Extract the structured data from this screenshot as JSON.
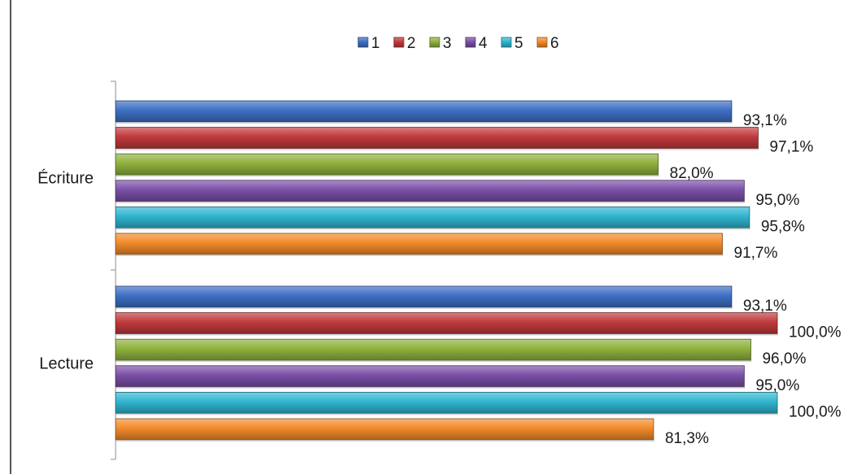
{
  "chart_data": {
    "type": "bar",
    "orientation": "horizontal",
    "title": "",
    "categories": [
      "Écriture",
      "Lecture"
    ],
    "series": [
      {
        "name": "1",
        "color": "#3d6fc4",
        "values": [
          93.1,
          93.1
        ],
        "labels": [
          "93,1%",
          "93,1%"
        ]
      },
      {
        "name": "2",
        "color": "#c0393b",
        "values": [
          97.1,
          100.0
        ],
        "labels": [
          "97,1%",
          "100,0%"
        ]
      },
      {
        "name": "3",
        "color": "#8fb13d",
        "values": [
          82.0,
          96.0
        ],
        "labels": [
          "82,0%",
          "96,0%"
        ]
      },
      {
        "name": "4",
        "color": "#7a4fa6",
        "values": [
          95.0,
          95.0
        ],
        "labels": [
          "95,0%",
          "95,0%"
        ]
      },
      {
        "name": "5",
        "color": "#2fb5cf",
        "values": [
          95.8,
          100.0
        ],
        "labels": [
          "95,8%",
          "100,0%"
        ]
      },
      {
        "name": "6",
        "color": "#f28a2a",
        "values": [
          91.7,
          81.3
        ],
        "labels": [
          "91,7%",
          "81,3%"
        ]
      }
    ],
    "xlim": [
      0,
      100
    ],
    "xlabel": "",
    "ylabel": "",
    "grid": false,
    "legend_position": "top"
  }
}
